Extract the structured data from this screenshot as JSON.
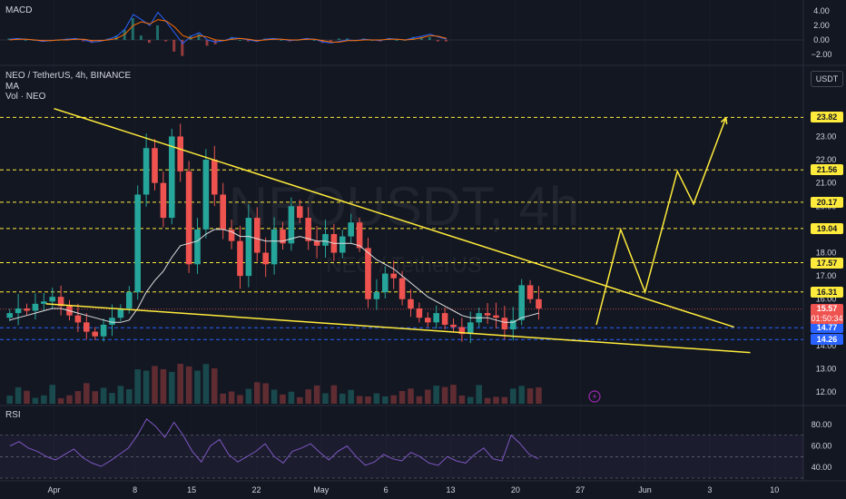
{
  "header": {
    "symbol_line": "NEO / TetherUS, 4h, BINANCE",
    "indicator_ma": "MA",
    "indicator_vol": "Vol · NEO",
    "macd_label": "MACD",
    "rsi_label": "RSI",
    "currency": "USDT",
    "watermark_main": "NEOUSDT, 4h",
    "watermark_sub": "NEO / TetherUS"
  },
  "chart_data": {
    "type": "candlestick",
    "main_pane": {
      "price_axis_ticks": [
        12.0,
        13.0,
        14.0,
        15.0,
        16.0,
        17.0,
        18.0,
        19.0,
        20.0,
        21.0,
        22.0,
        23.0
      ],
      "price_axis_ticks_text": [
        "12.00",
        "13.00",
        "14.00",
        "15.00",
        "16.00",
        "17.00",
        "18.00",
        "19.00",
        "20.00",
        "21.00",
        "22.00",
        "23.00"
      ],
      "ylim": [
        11.5,
        24.5
      ],
      "horizontal_levels": [
        {
          "value": 23.82,
          "label": "23.82",
          "color": "#ffeb3b"
        },
        {
          "value": 21.56,
          "label": "21.56",
          "color": "#ffeb3b"
        },
        {
          "value": 20.17,
          "label": "20.17",
          "color": "#ffeb3b"
        },
        {
          "value": 19.04,
          "label": "19.04",
          "color": "#ffeb3b"
        },
        {
          "value": 17.57,
          "label": "17.57",
          "color": "#ffeb3b"
        },
        {
          "value": 16.31,
          "label": "16.31",
          "color": "#ffeb3b"
        },
        {
          "value": 14.77,
          "label": "14.77",
          "color": "#2962ff"
        },
        {
          "value": 14.26,
          "label": "14.26",
          "color": "#2962ff"
        }
      ],
      "last_price": {
        "value": 15.57,
        "label": "15.57",
        "countdown": "01:50:34",
        "color": "#ef5350"
      },
      "upper_trendline": [
        {
          "x": 0.0,
          "y": 24.2
        },
        {
          "x": 46.0,
          "y": 14.6
        }
      ],
      "lower_trendline": [
        {
          "x": 0.0,
          "y": 15.8
        },
        {
          "x": 46.0,
          "y": 13.7
        }
      ],
      "projection_path": [
        {
          "x": 36.5,
          "y": 14.9
        },
        {
          "x": 38.0,
          "y": 19.0
        },
        {
          "x": 39.5,
          "y": 16.3
        },
        {
          "x": 41.5,
          "y": 21.5
        },
        {
          "x": 42.5,
          "y": 20.1
        },
        {
          "x": 44.5,
          "y": 23.8
        }
      ],
      "close_series": [
        15.4,
        15.6,
        15.5,
        15.8,
        15.9,
        16.1,
        15.7,
        15.3,
        15.0,
        14.6,
        14.4,
        14.9,
        15.2,
        15.6,
        16.3,
        20.5,
        22.5,
        21.0,
        19.5,
        23.0,
        21.5,
        17.5,
        19.0,
        22.0,
        20.5,
        19.0,
        18.5,
        17.0,
        19.5,
        18.0,
        17.5,
        19.0,
        18.4,
        20.0,
        19.5,
        18.5,
        18.3,
        18.8,
        18.0,
        18.7,
        19.3,
        18.2,
        16.0,
        16.3,
        17.1,
        16.9,
        16.0,
        15.6,
        15.2,
        15.0,
        15.4,
        14.9,
        14.8,
        14.5,
        15.0,
        15.4,
        15.3,
        15.2,
        14.7,
        15.1,
        16.6,
        16.0,
        15.6
      ],
      "ma_series": [
        15.1,
        15.2,
        15.3,
        15.4,
        15.5,
        15.6,
        15.6,
        15.5,
        15.4,
        15.3,
        15.2,
        15.1,
        15.0,
        15.0,
        15.1,
        15.6,
        16.3,
        16.8,
        17.2,
        17.8,
        18.3,
        18.4,
        18.5,
        18.8,
        19.0,
        19.0,
        18.9,
        18.7,
        18.7,
        18.6,
        18.5,
        18.5,
        18.5,
        18.6,
        18.7,
        18.6,
        18.5,
        18.5,
        18.4,
        18.4,
        18.4,
        18.3,
        18.0,
        17.7,
        17.5,
        17.3,
        17.0,
        16.7,
        16.4,
        16.1,
        15.9,
        15.7,
        15.5,
        15.3,
        15.2,
        15.2,
        15.2,
        15.1,
        15.0,
        15.0,
        15.2,
        15.3,
        15.4
      ]
    },
    "x_axis": {
      "ticks": [
        {
          "x": 3.0,
          "label": "Apr"
        },
        {
          "x": 8.0,
          "label": "8"
        },
        {
          "x": 11.5,
          "label": "15"
        },
        {
          "x": 15.5,
          "label": "22"
        },
        {
          "x": 19.5,
          "label": "May"
        },
        {
          "x": 23.5,
          "label": "6"
        },
        {
          "x": 27.5,
          "label": "13"
        },
        {
          "x": 31.5,
          "label": "20"
        },
        {
          "x": 35.5,
          "label": "27"
        },
        {
          "x": 39.5,
          "label": "Jun"
        },
        {
          "x": 43.5,
          "label": "3"
        },
        {
          "x": 47.5,
          "label": "10"
        }
      ]
    },
    "macd_pane": {
      "ticks": [
        4.0,
        2.0,
        0.0,
        -2.0
      ],
      "ticks_text": [
        "4.00",
        "2.00",
        "0.00",
        "−2.00"
      ],
      "ylim": [
        -3.0,
        5.0
      ],
      "macd_series": [
        0.1,
        0.2,
        0.1,
        0.0,
        -0.2,
        -0.1,
        0.0,
        0.1,
        0.2,
        0.0,
        -0.3,
        -0.2,
        0.1,
        0.5,
        1.5,
        3.5,
        2.8,
        2.0,
        3.8,
        2.5,
        1.0,
        -0.5,
        0.5,
        1.0,
        0.0,
        -0.3,
        -0.1,
        0.3,
        0.2,
        0.0,
        -0.2,
        0.1,
        0.2,
        0.1,
        -0.1,
        0.0,
        0.2,
        0.1,
        -0.3,
        -0.4,
        -0.2,
        0.0,
        -0.1,
        0.1,
        0.0,
        -0.1,
        0.2,
        0.1,
        0.0,
        0.3,
        0.5,
        0.8,
        0.4,
        0.1
      ],
      "signal_series": [
        0.0,
        0.1,
        0.1,
        0.0,
        -0.1,
        -0.1,
        0.0,
        0.0,
        0.1,
        0.1,
        -0.1,
        -0.1,
        0.0,
        0.2,
        0.8,
        2.0,
        2.5,
        2.2,
        2.8,
        2.6,
        1.8,
        0.6,
        0.2,
        0.6,
        0.4,
        0.0,
        -0.1,
        0.1,
        0.2,
        0.1,
        -0.1,
        0.0,
        0.1,
        0.1,
        0.0,
        0.0,
        0.1,
        0.1,
        -0.1,
        -0.3,
        -0.3,
        -0.1,
        -0.1,
        0.0,
        0.0,
        0.0,
        0.1,
        0.1,
        0.0,
        0.1,
        0.3,
        0.6,
        0.5,
        0.2
      ]
    },
    "rsi_pane": {
      "ticks": [
        80.0,
        60.0,
        40.0
      ],
      "ticks_text": [
        "80.00",
        "60.00",
        "40.00"
      ],
      "ylim": [
        30,
        95
      ],
      "band": [
        30,
        70
      ],
      "rsi_series": [
        60,
        64,
        58,
        55,
        50,
        47,
        52,
        57,
        49,
        44,
        41,
        46,
        52,
        58,
        70,
        85,
        78,
        68,
        82,
        70,
        55,
        45,
        60,
        66,
        52,
        45,
        50,
        55,
        62,
        50,
        44,
        55,
        58,
        62,
        54,
        47,
        55,
        60,
        50,
        42,
        45,
        52,
        48,
        46,
        54,
        50,
        44,
        42,
        50,
        46,
        44,
        52,
        58,
        48,
        46,
        70,
        62,
        52,
        48
      ]
    }
  },
  "colors": {
    "background": "#131722",
    "up": "#26a69a",
    "down": "#ef5350",
    "trendline": "#ffeb3b",
    "ma": "#e0e0e0",
    "macd": "#2962ff",
    "signal": "#ff6d00",
    "rsi": "#7e57c2",
    "grid": "#2a2e39",
    "text": "#d1d4dc"
  }
}
